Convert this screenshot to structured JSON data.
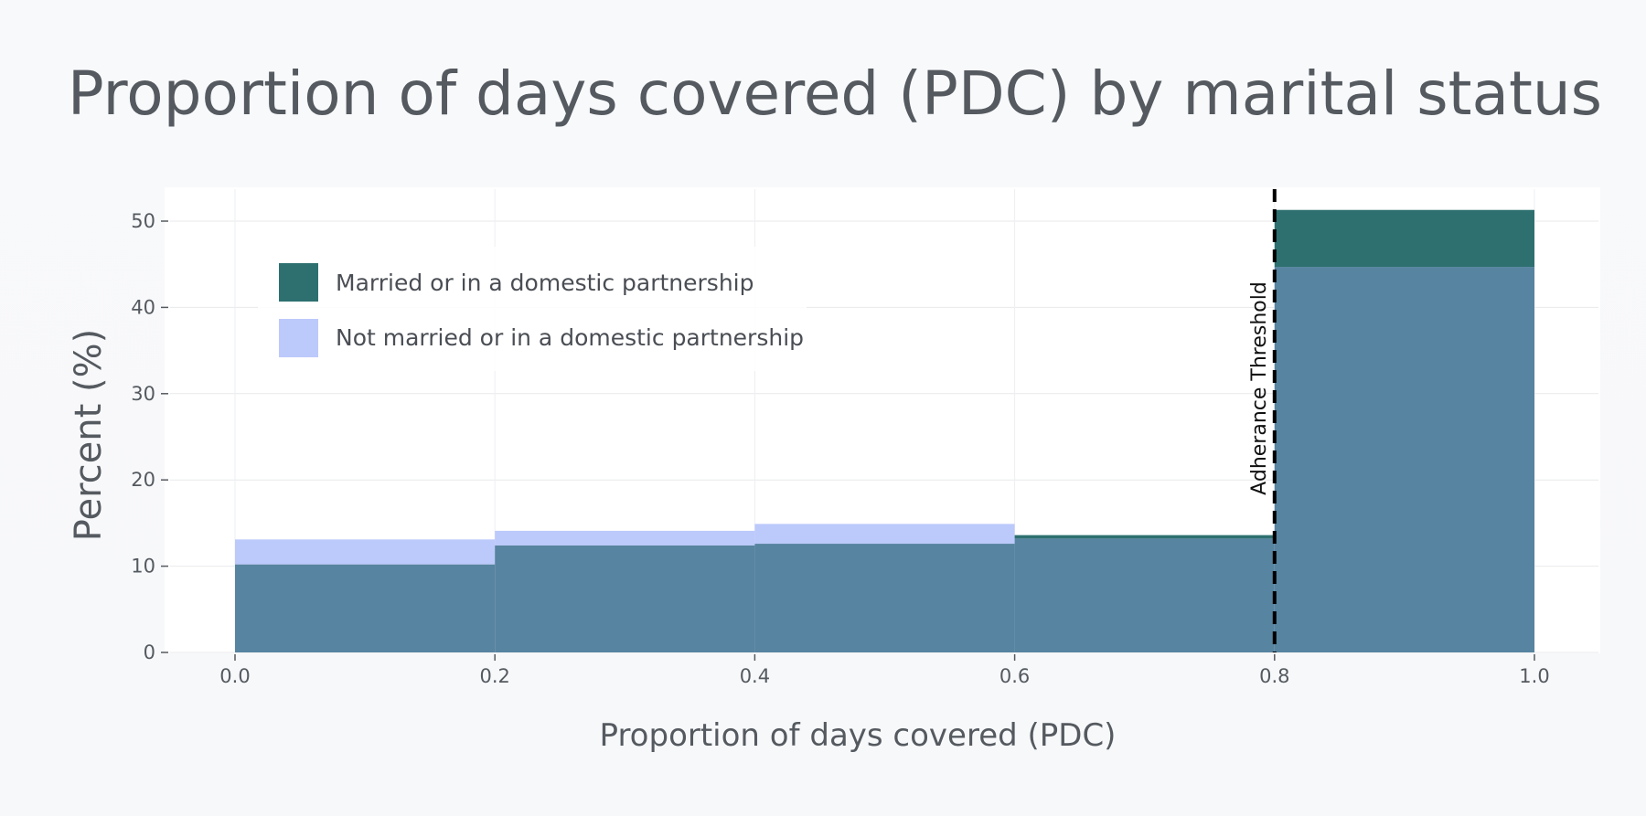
{
  "chart_data": {
    "type": "bar",
    "title": "Proportion of days covered (PDC) by marital status",
    "xlabel": "Proportion of days covered (PDC)",
    "ylabel": "Percent (%)",
    "xlim": [
      -0.05,
      1.05
    ],
    "ylim": [
      0,
      53
    ],
    "xticks": [
      "0.0",
      "0.2",
      "0.4",
      "0.6",
      "0.8",
      "1.0"
    ],
    "yticks": [
      "0",
      "10",
      "20",
      "30",
      "40",
      "50"
    ],
    "grid": true,
    "legend_position": "top-left",
    "bins": [
      [
        0.0,
        0.2
      ],
      [
        0.2,
        0.4
      ],
      [
        0.4,
        0.6
      ],
      [
        0.6,
        0.8
      ],
      [
        0.8,
        1.0
      ]
    ],
    "series": [
      {
        "name": "Married or in a domestic partnership",
        "color": "#2e7070",
        "values": [
          10.2,
          12.4,
          12.6,
          13.6,
          51.3
        ]
      },
      {
        "name": "Not married or in a domestic partnership",
        "color": "#bcc9fb",
        "values": [
          13.1,
          14.1,
          14.9,
          13.2,
          44.7
        ]
      }
    ],
    "overlap_color": "#5784a0",
    "threshold": {
      "x": 0.8,
      "label": "Adherance Threshold"
    }
  }
}
